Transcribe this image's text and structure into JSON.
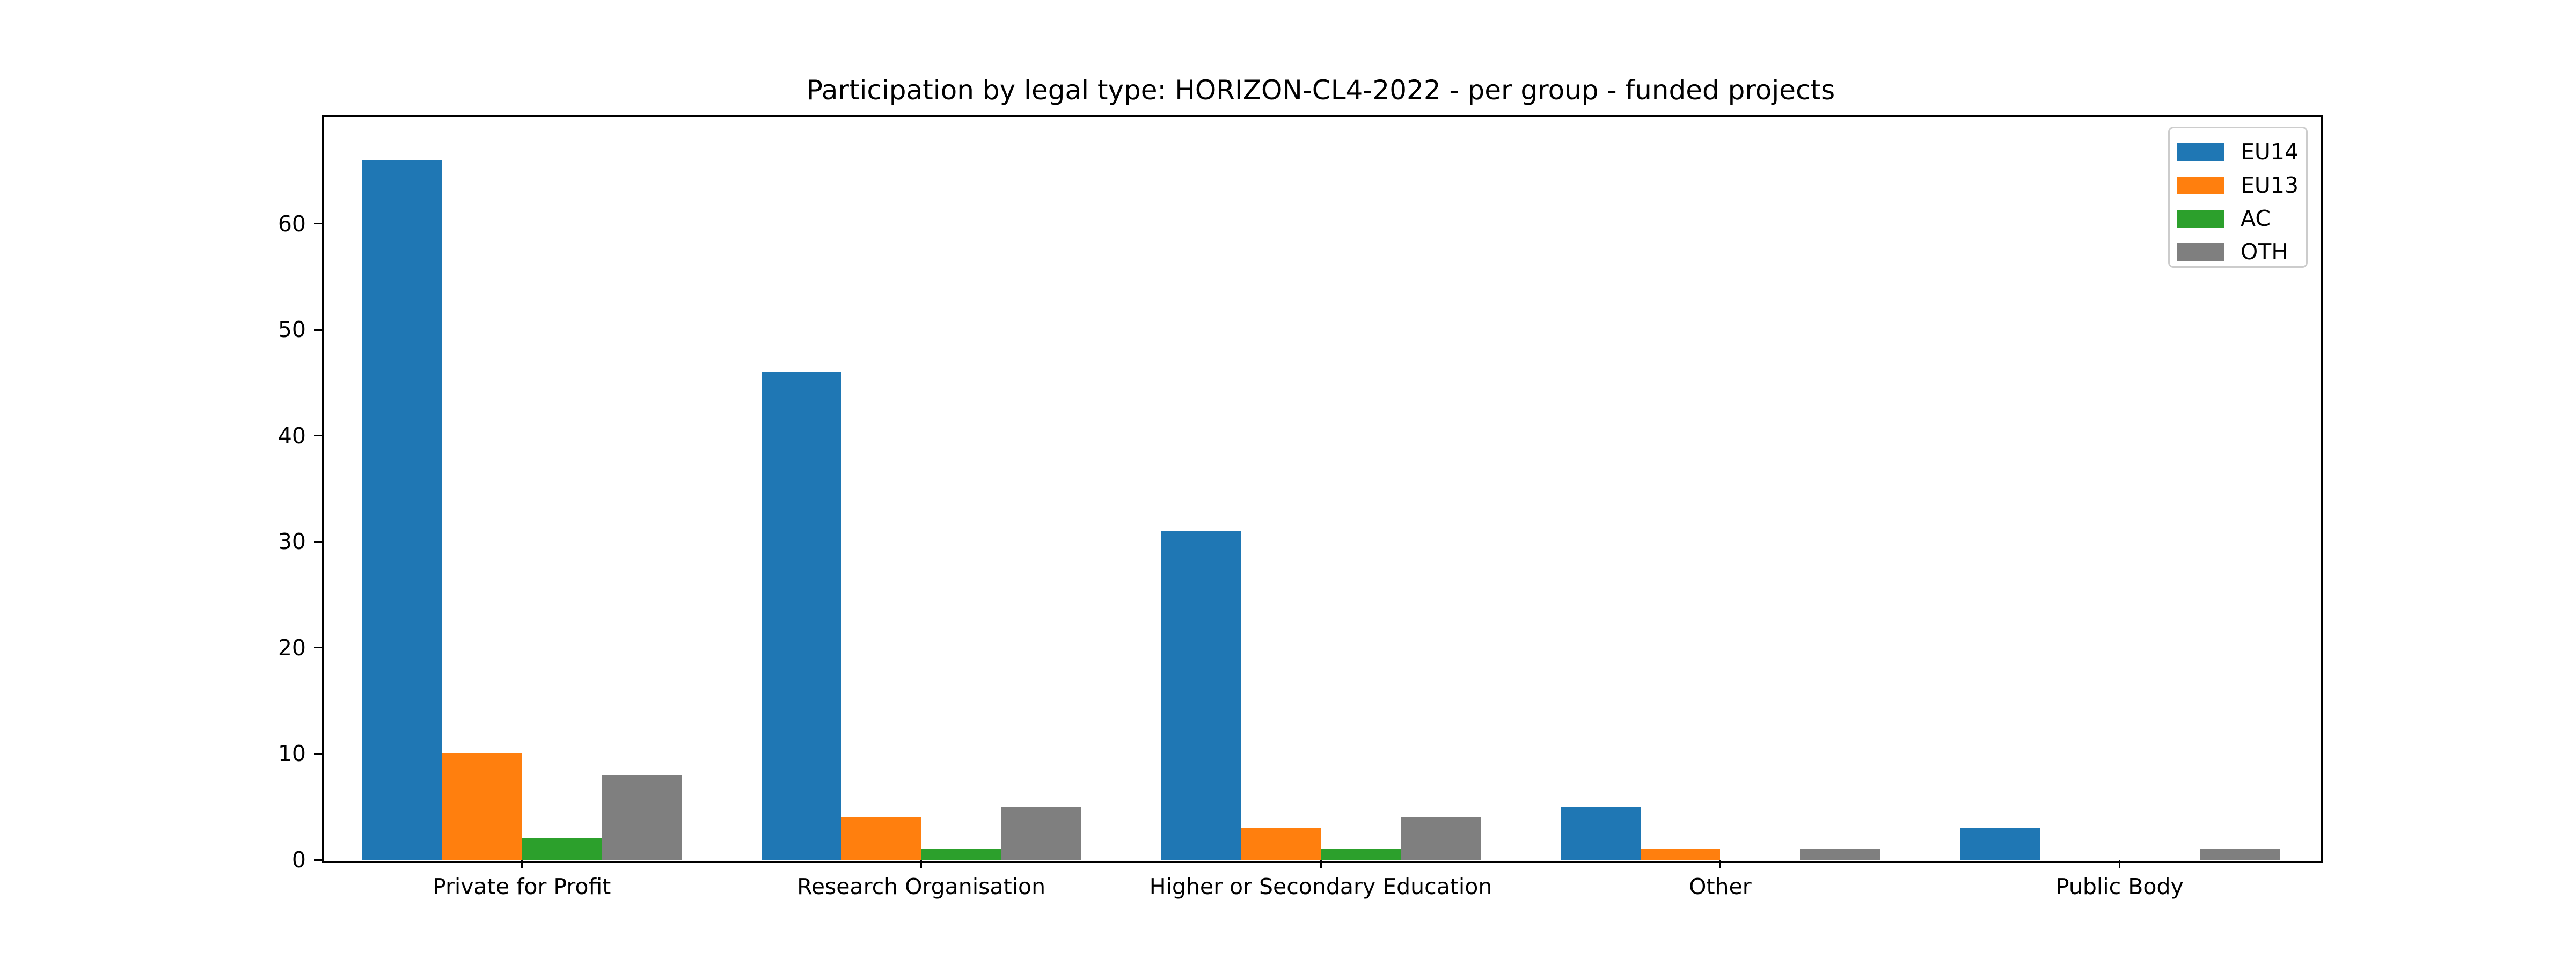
{
  "title": "Participation by legal type: HORIZON-CL4-2022 - per group - funded projects",
  "colors": {
    "eu14": "#1f77b4",
    "eu13": "#ff7f0e",
    "ac": "#2ca02c",
    "oth": "#7f7f7f",
    "axis": "#000000",
    "legend_border": "#cccccc",
    "background": "#ffffff"
  },
  "chart_data": {
    "type": "bar",
    "title": "Participation by legal type: HORIZON-CL4-2022 - per group - funded projects",
    "categories": [
      "Private for Profit",
      "Research Organisation",
      "Higher or Secondary Education",
      "Other",
      "Public Body"
    ],
    "series": [
      {
        "name": "EU14",
        "color": "#1f77b4",
        "values": [
          66,
          46,
          31,
          5,
          3
        ]
      },
      {
        "name": "EU13",
        "color": "#ff7f0e",
        "values": [
          10,
          4,
          3,
          1,
          0
        ]
      },
      {
        "name": "AC",
        "color": "#2ca02c",
        "values": [
          2,
          1,
          1,
          0,
          0
        ]
      },
      {
        "name": "OTH",
        "color": "#7f7f7f",
        "values": [
          8,
          5,
          4,
          1,
          1
        ]
      }
    ],
    "xlabel": "",
    "ylabel": "",
    "yticks": [
      0,
      10,
      20,
      30,
      40,
      50,
      60
    ],
    "ylim": [
      0,
      70.2
    ],
    "xlim": [
      -0.5,
      4.5
    ],
    "bar_width": 0.2,
    "grid": false,
    "legend_position": "upper right",
    "legend": [
      "EU14",
      "EU13",
      "AC",
      "OTH"
    ]
  }
}
